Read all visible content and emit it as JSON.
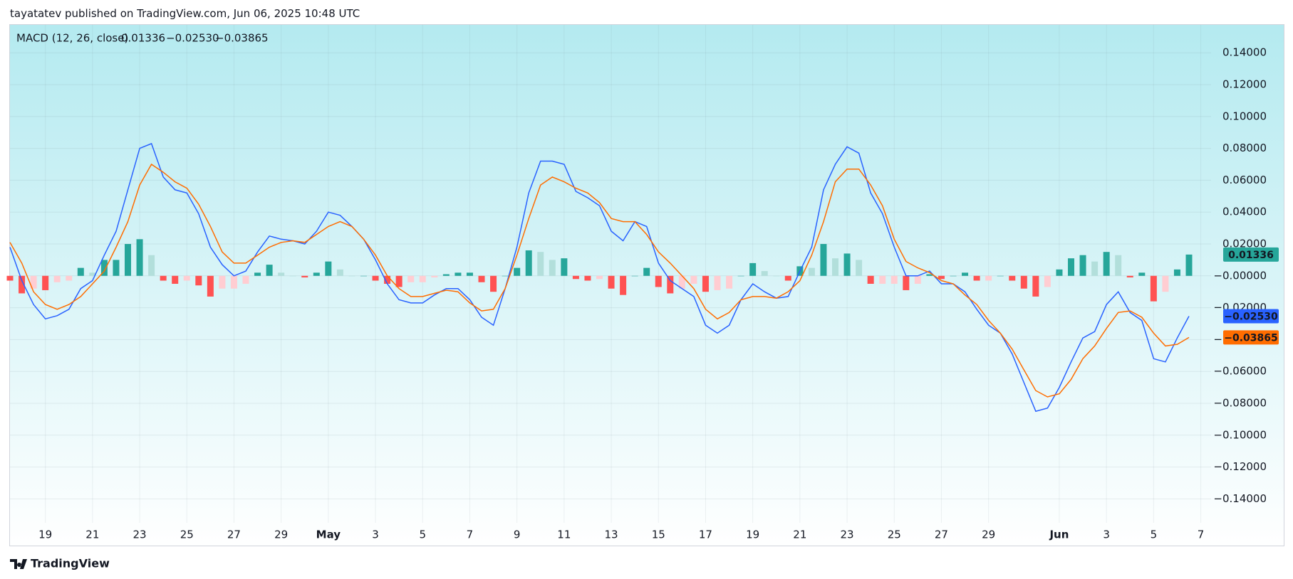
{
  "header": {
    "text": "tayatatev published on TradingView.com, Jun 06, 2025 10:48 UTC"
  },
  "footer": {
    "brand": "TradingView"
  },
  "chart_data": {
    "type": "combo",
    "legend_title": "MACD (12, 26, close)",
    "categories": [
      null,
      null,
      null,
      "19",
      null,
      null,
      null,
      "21",
      null,
      null,
      null,
      "23",
      null,
      null,
      null,
      "25",
      null,
      null,
      null,
      "27",
      null,
      null,
      null,
      "29",
      null,
      null,
      null,
      "May",
      null,
      null,
      null,
      "3",
      null,
      null,
      null,
      "5",
      null,
      null,
      null,
      "7",
      null,
      null,
      null,
      "9",
      null,
      null,
      null,
      "11",
      null,
      null,
      null,
      "13",
      null,
      null,
      null,
      "15",
      null,
      null,
      null,
      "17",
      null,
      null,
      null,
      "19",
      null,
      null,
      null,
      "21",
      null,
      null,
      null,
      "23",
      null,
      null,
      null,
      "25",
      null,
      null,
      null,
      "27",
      null,
      null,
      null,
      "29",
      null,
      null,
      null,
      null,
      null,
      "Jun",
      null,
      null,
      null,
      "3",
      null,
      null,
      null,
      "5",
      null,
      null,
      null,
      "7"
    ],
    "ylim": [
      -0.155,
      0.1575
    ],
    "yticks": [
      {
        "value": 0.14,
        "label": "0.14000"
      },
      {
        "value": 0.12,
        "label": "0.12000"
      },
      {
        "value": 0.1,
        "label": "0.10000"
      },
      {
        "value": 0.08,
        "label": "0.08000"
      },
      {
        "value": 0.06,
        "label": "0.06000"
      },
      {
        "value": 0.04,
        "label": "0.04000"
      },
      {
        "value": 0.02,
        "label": "0.02000"
      },
      {
        "value": 0,
        "label": "−0.00000"
      },
      {
        "value": -0.02,
        "label": "−0.02000"
      },
      {
        "value": -0.04,
        "label": "−0.04000"
      },
      {
        "value": -0.06,
        "label": "−0.06000"
      },
      {
        "value": -0.08,
        "label": "−0.08000"
      },
      {
        "value": -0.1,
        "label": "−0.10000"
      },
      {
        "value": -0.12,
        "label": "−0.12000"
      },
      {
        "value": -0.14,
        "label": "−0.14000"
      }
    ],
    "grid": true,
    "series": [
      {
        "type": "histogram",
        "color": "#26a69a",
        "colors": [
          "#26a69a",
          "#b2dfdb",
          "#ff5252",
          "#ffcdd2"
        ],
        "last_label": "0.01336",
        "values": [
          -0.003,
          -0.011,
          -0.008,
          -0.009,
          -0.004,
          -0.003,
          0.005,
          0.002,
          0.01,
          0.01,
          0.02,
          0.023,
          0.013,
          -0.003,
          -0.005,
          -0.003,
          -0.006,
          -0.013,
          -0.008,
          -0.008,
          -0.005,
          0.002,
          0.007,
          0.002,
          0,
          -0.001,
          0.002,
          0.009,
          0.004,
          0,
          0,
          -0.003,
          -0.005,
          -0.007,
          -0.004,
          -0.004,
          -0.001,
          0.001,
          0.002,
          0.002,
          -0.004,
          -0.01,
          0,
          0.005,
          0.016,
          0.015,
          0.01,
          0.011,
          -0.002,
          -0.003,
          -0.002,
          -0.008,
          -0.012,
          0,
          0.005,
          -0.007,
          -0.011,
          -0.008,
          -0.005,
          -0.01,
          -0.009,
          -0.008,
          0,
          0.008,
          0.003,
          0,
          -0.003,
          0.006,
          0.005,
          0.02,
          0.011,
          0.014,
          0.01,
          -0.005,
          -0.005,
          -0.005,
          -0.009,
          -0.005,
          0.001,
          -0.002,
          0,
          0.002,
          -0.003,
          -0.003,
          0,
          -0.003,
          -0.008,
          -0.013,
          -0.007,
          0.004,
          0.011,
          0.013,
          0.009,
          0.015,
          0.013,
          -0.001,
          0.002,
          -0.016,
          -0.01,
          0.004,
          0.01336,
          null
        ]
      },
      {
        "type": "line",
        "color": "#2962ff",
        "last_label": "−0.02530",
        "values": [
          0.018,
          -0.003,
          -0.018,
          -0.027,
          -0.025,
          -0.021,
          -0.008,
          -0.003,
          0.013,
          0.028,
          0.054,
          0.08,
          0.083,
          0.062,
          0.054,
          0.052,
          0.039,
          0.018,
          0.007,
          0,
          0.003,
          0.015,
          0.025,
          0.023,
          0.022,
          0.02,
          0.028,
          0.04,
          0.038,
          0.031,
          0.023,
          0.01,
          -0.005,
          -0.015,
          -0.017,
          -0.017,
          -0.012,
          -0.008,
          -0.008,
          -0.015,
          -0.026,
          -0.031,
          -0.008,
          0.018,
          0.052,
          0.072,
          0.072,
          0.07,
          0.053,
          0.049,
          0.044,
          0.028,
          0.022,
          0.034,
          0.031,
          0.008,
          -0.003,
          -0.008,
          -0.013,
          -0.031,
          -0.036,
          -0.031,
          -0.015,
          -0.005,
          -0.01,
          -0.014,
          -0.013,
          0.003,
          0.018,
          0.054,
          0.07,
          0.081,
          0.077,
          0.052,
          0.039,
          0.018,
          0,
          0,
          0.003,
          -0.005,
          -0.005,
          -0.01,
          -0.021,
          -0.031,
          -0.036,
          -0.049,
          -0.067,
          -0.085,
          -0.083,
          -0.07,
          -0.054,
          -0.039,
          -0.035,
          -0.018,
          -0.01,
          -0.023,
          -0.028,
          -0.052,
          -0.054,
          -0.039,
          -0.0253,
          null
        ]
      },
      {
        "type": "line",
        "color": "#ff6d00",
        "last_label": "−0.03865",
        "values": [
          0.021,
          0.008,
          -0.01,
          -0.018,
          -0.021,
          -0.018,
          -0.013,
          -0.005,
          0.003,
          0.018,
          0.034,
          0.057,
          0.07,
          0.065,
          0.059,
          0.055,
          0.045,
          0.031,
          0.015,
          0.008,
          0.008,
          0.013,
          0.018,
          0.021,
          0.022,
          0.021,
          0.026,
          0.031,
          0.034,
          0.031,
          0.023,
          0.013,
          0,
          -0.008,
          -0.013,
          -0.013,
          -0.011,
          -0.009,
          -0.01,
          -0.017,
          -0.022,
          -0.021,
          -0.008,
          0.013,
          0.036,
          0.057,
          0.062,
          0.059,
          0.055,
          0.052,
          0.046,
          0.036,
          0.034,
          0.034,
          0.026,
          0.015,
          0.008,
          0,
          -0.008,
          -0.021,
          -0.027,
          -0.023,
          -0.015,
          -0.013,
          -0.013,
          -0.014,
          -0.01,
          -0.003,
          0.013,
          0.034,
          0.059,
          0.067,
          0.067,
          0.057,
          0.044,
          0.023,
          0.009,
          0.005,
          0.002,
          -0.003,
          -0.005,
          -0.012,
          -0.018,
          -0.028,
          -0.036,
          -0.046,
          -0.059,
          -0.072,
          -0.076,
          -0.074,
          -0.065,
          -0.052,
          -0.044,
          -0.033,
          -0.023,
          -0.022,
          -0.026,
          -0.036,
          -0.044,
          -0.043,
          -0.03865,
          null
        ]
      }
    ]
  }
}
